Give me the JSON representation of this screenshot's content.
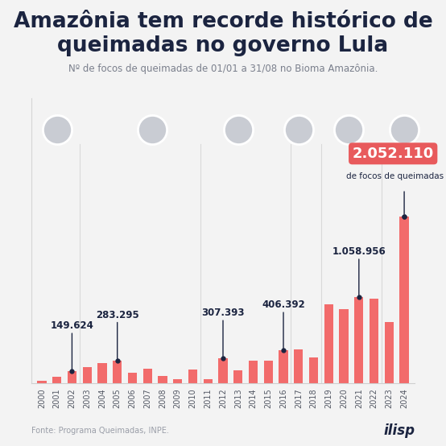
{
  "chart_data": {
    "type": "bar",
    "title": "Amazônia tem recorde histórico de queimadas no governo Lula",
    "subtitle": "Nº de focos de queimadas de 01/01 a 31/08 no Bioma Amazônia.",
    "categories": [
      "2000",
      "2001",
      "2002",
      "2003",
      "2004",
      "2005",
      "2006",
      "2007",
      "2008",
      "2009",
      "2010",
      "2011",
      "2012",
      "2013",
      "2014",
      "2015",
      "2016",
      "2017",
      "2018",
      "2019",
      "2020",
      "2021",
      "2022",
      "2023",
      "2024"
    ],
    "values": [
      30000,
      80000,
      149624,
      200000,
      250000,
      283295,
      130000,
      180000,
      90000,
      50000,
      170000,
      50000,
      307393,
      160000,
      280000,
      280000,
      406392,
      420000,
      320000,
      970000,
      910000,
      1058956,
      1040000,
      750000,
      2052110
    ],
    "value_labels": [
      null,
      null,
      "149.624",
      null,
      null,
      "283.295",
      null,
      null,
      null,
      null,
      null,
      null,
      "307.393",
      null,
      null,
      null,
      "406.392",
      null,
      null,
      null,
      null,
      "1.058.956",
      null,
      null,
      "2.052.110"
    ],
    "annotation": "de focos de queimadas",
    "source": "Fonte: Programa Queimadas, INPE.",
    "logo": "ilisp",
    "color": "#f26b6b",
    "ylim": [
      0,
      3500000
    ],
    "yticks": [],
    "data_labels": true,
    "tick_labels": "x",
    "grid": false
  }
}
